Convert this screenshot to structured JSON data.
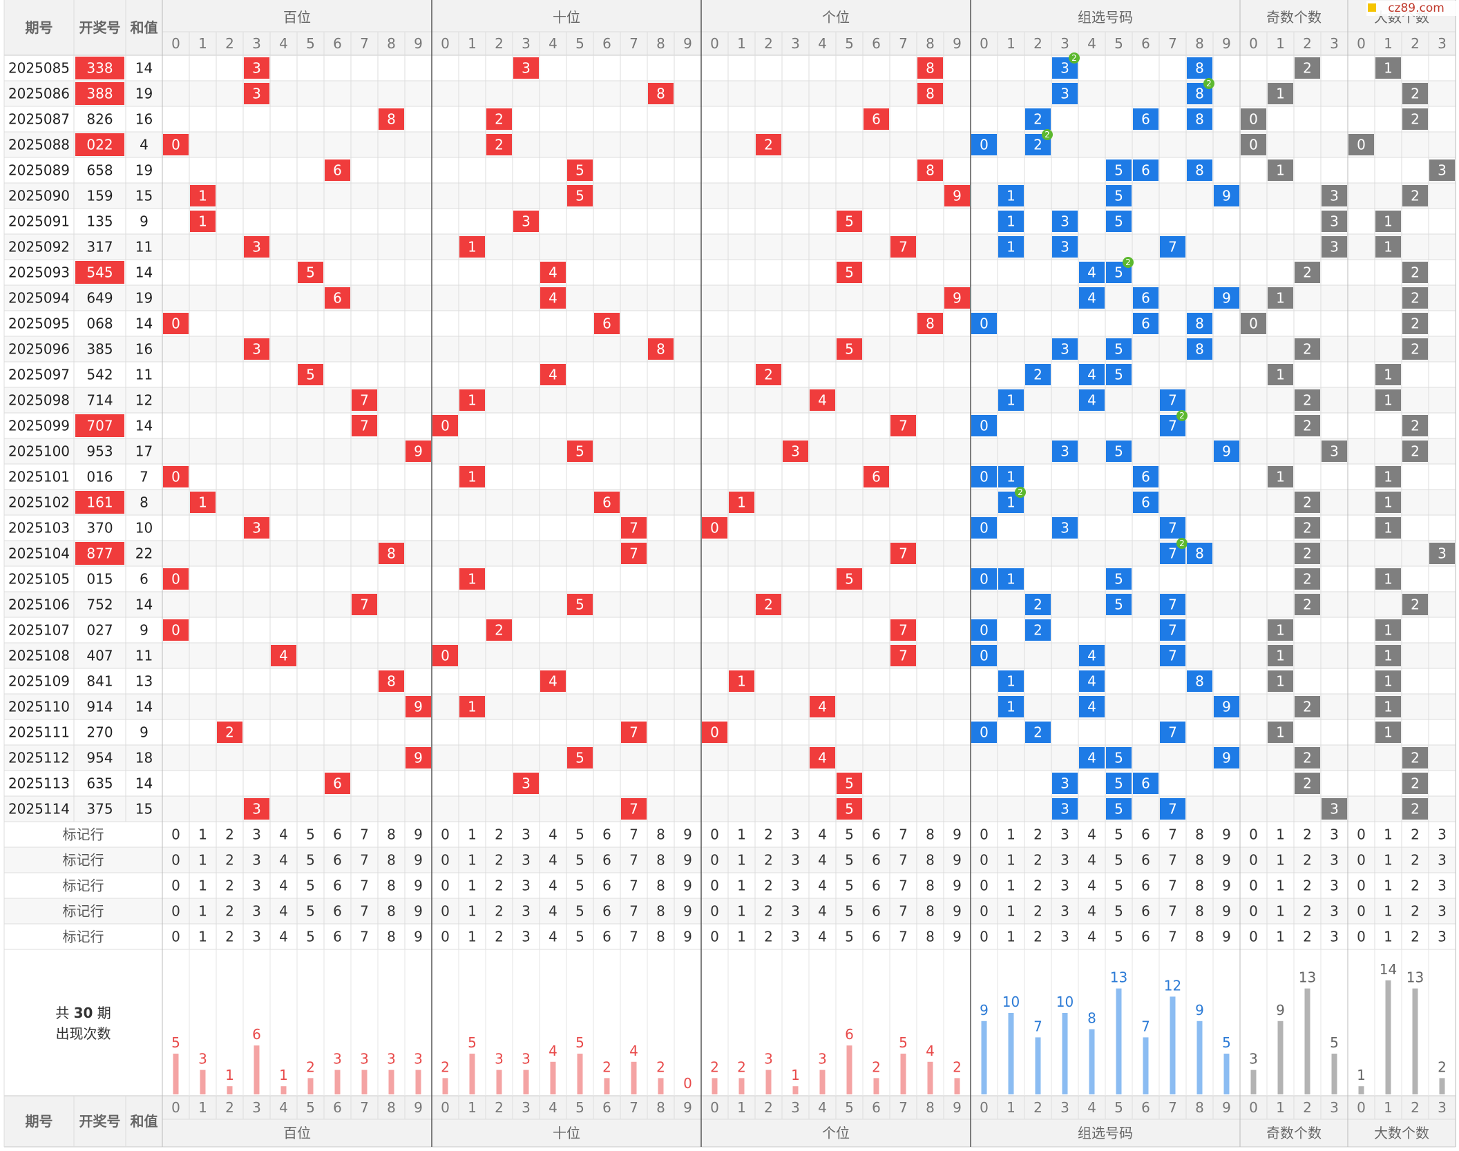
{
  "header": {
    "issue": "期号",
    "draw": "开奖号",
    "sum": "和值",
    "groups": [
      "百位",
      "十位",
      "个位",
      "组选号码",
      "奇数个数",
      "大数个数"
    ],
    "logo": "cz89.com"
  },
  "digits10": [
    "0",
    "1",
    "2",
    "3",
    "4",
    "5",
    "6",
    "7",
    "8",
    "9"
  ],
  "digits4": [
    "0",
    "1",
    "2",
    "3"
  ],
  "rows": [
    {
      "issue": "2025085",
      "draw": "338",
      "sum": "14",
      "red": true
    },
    {
      "issue": "2025086",
      "draw": "388",
      "sum": "19",
      "red": true
    },
    {
      "issue": "2025087",
      "draw": "826",
      "sum": "16",
      "red": false
    },
    {
      "issue": "2025088",
      "draw": "022",
      "sum": "4",
      "red": true
    },
    {
      "issue": "2025089",
      "draw": "658",
      "sum": "19",
      "red": false
    },
    {
      "issue": "2025090",
      "draw": "159",
      "sum": "15",
      "red": false
    },
    {
      "issue": "2025091",
      "draw": "135",
      "sum": "9",
      "red": false
    },
    {
      "issue": "2025092",
      "draw": "317",
      "sum": "11",
      "red": false
    },
    {
      "issue": "2025093",
      "draw": "545",
      "sum": "14",
      "red": true
    },
    {
      "issue": "2025094",
      "draw": "649",
      "sum": "19",
      "red": false
    },
    {
      "issue": "2025095",
      "draw": "068",
      "sum": "14",
      "red": false
    },
    {
      "issue": "2025096",
      "draw": "385",
      "sum": "16",
      "red": false
    },
    {
      "issue": "2025097",
      "draw": "542",
      "sum": "11",
      "red": false
    },
    {
      "issue": "2025098",
      "draw": "714",
      "sum": "12",
      "red": false
    },
    {
      "issue": "2025099",
      "draw": "707",
      "sum": "14",
      "red": true
    },
    {
      "issue": "2025100",
      "draw": "953",
      "sum": "17",
      "red": false
    },
    {
      "issue": "2025101",
      "draw": "016",
      "sum": "7",
      "red": false
    },
    {
      "issue": "2025102",
      "draw": "161",
      "sum": "8",
      "red": true
    },
    {
      "issue": "2025103",
      "draw": "370",
      "sum": "10",
      "red": false
    },
    {
      "issue": "2025104",
      "draw": "877",
      "sum": "22",
      "red": true
    },
    {
      "issue": "2025105",
      "draw": "015",
      "sum": "6",
      "red": false
    },
    {
      "issue": "2025106",
      "draw": "752",
      "sum": "14",
      "red": false
    },
    {
      "issue": "2025107",
      "draw": "027",
      "sum": "9",
      "red": false
    },
    {
      "issue": "2025108",
      "draw": "407",
      "sum": "11",
      "red": false
    },
    {
      "issue": "2025109",
      "draw": "841",
      "sum": "13",
      "red": false
    },
    {
      "issue": "2025110",
      "draw": "914",
      "sum": "14",
      "red": false
    },
    {
      "issue": "2025111",
      "draw": "270",
      "sum": "9",
      "red": false
    },
    {
      "issue": "2025112",
      "draw": "954",
      "sum": "18",
      "red": false
    },
    {
      "issue": "2025113",
      "draw": "635",
      "sum": "14",
      "red": false
    },
    {
      "issue": "2025114",
      "draw": "375",
      "sum": "15",
      "red": false
    }
  ],
  "marker_label": "标记行",
  "marker_rows": 5,
  "stats": {
    "label_line1_a": "共 ",
    "label_line1_b": "30",
    "label_line1_c": " 期",
    "label_line2": "出现次数",
    "hundreds": [
      5,
      3,
      1,
      6,
      1,
      2,
      3,
      3,
      3,
      3
    ],
    "tens": [
      2,
      5,
      3,
      3,
      4,
      5,
      2,
      4,
      2,
      0
    ],
    "units": [
      2,
      2,
      3,
      1,
      3,
      6,
      2,
      5,
      4,
      2
    ],
    "group": [
      9,
      10,
      7,
      10,
      8,
      13,
      7,
      12,
      9,
      5
    ],
    "odd": [
      3,
      9,
      13,
      5
    ],
    "big": [
      1,
      14,
      13,
      2
    ]
  },
  "colors": {
    "red": "#f03c3c",
    "blue": "#1e7be6",
    "gray": "#7f7f7f",
    "green": "#5cb82e",
    "bar_red": "#f4a3a3",
    "bar_blue": "#8bbcf2",
    "bar_gray": "#b3b3b3",
    "text_red": "#e84a4a",
    "text_blue": "#2c7bd6",
    "text_gray": "#666666"
  }
}
